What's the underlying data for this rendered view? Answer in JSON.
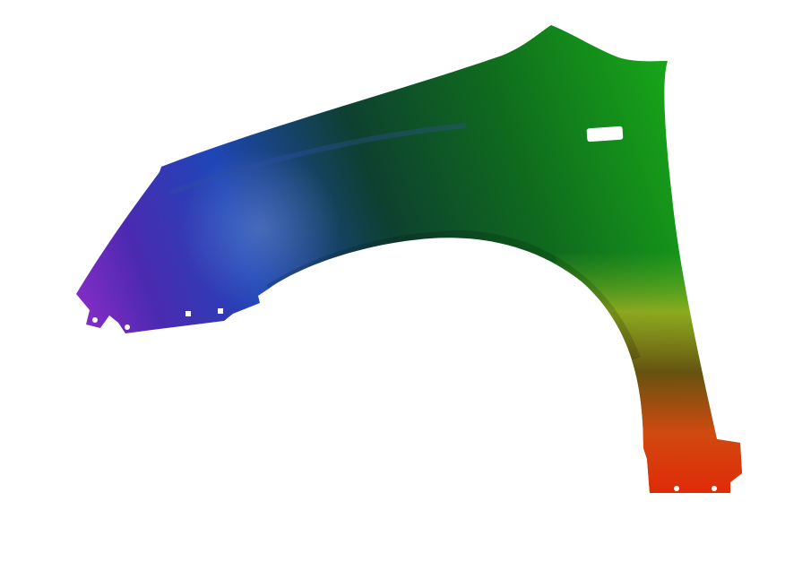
{
  "subject": "car-fender",
  "colors": {
    "background": "#ffffff",
    "purple": "#8a2cc8",
    "blue": "#1f46b8",
    "dark_green": "#0e4a22",
    "green": "#16a020",
    "yellow_green": "#a0b020",
    "orange": "#e05a10",
    "red": "#e02a08"
  }
}
